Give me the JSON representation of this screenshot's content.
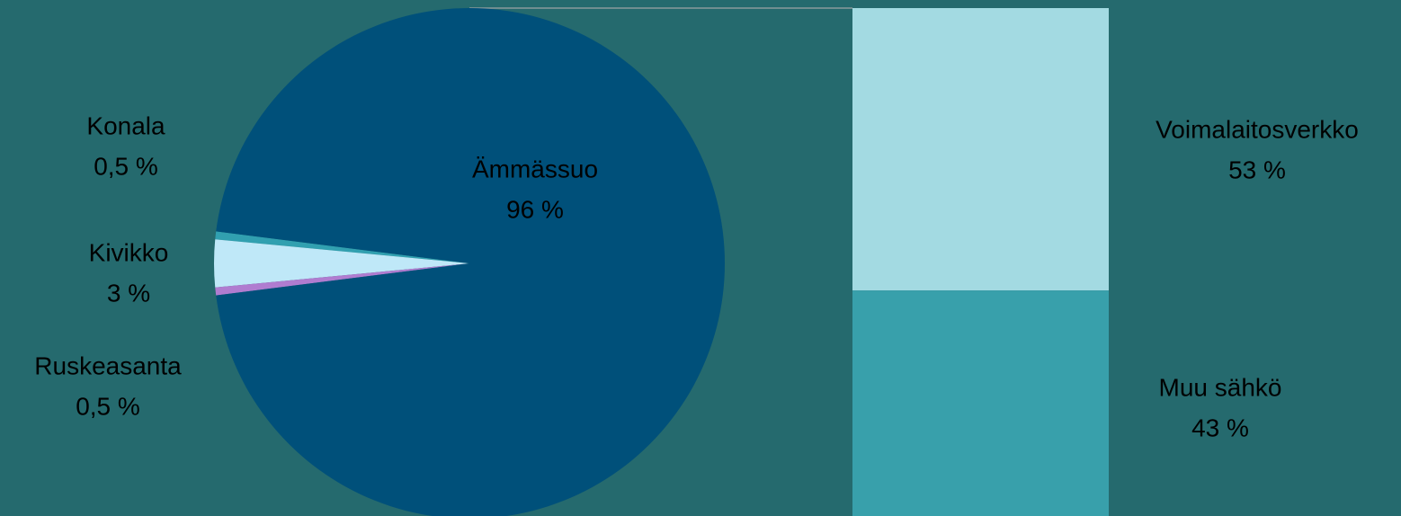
{
  "chart_data": [
    {
      "type": "pie",
      "categories": [
        "Konala",
        "Kivikko",
        "Ruskeasanta",
        "Ämmässuo"
      ],
      "values": [
        0.5,
        3,
        0.5,
        96
      ],
      "value_labels": [
        "0,5 %",
        "3 %",
        "0,5 %",
        "96 %"
      ],
      "colors": [
        "#31a0b0",
        "#bfe8f8",
        "#b07cd0",
        "#00507a"
      ]
    },
    {
      "type": "bar",
      "stacked": true,
      "categories": [
        "Voimalaitosverkko",
        "Muu sähkö"
      ],
      "values": [
        53,
        43
      ],
      "value_labels": [
        "53 %",
        "43 %"
      ],
      "colors": [
        "#a3dae2",
        "#38a0ab"
      ]
    }
  ]
}
